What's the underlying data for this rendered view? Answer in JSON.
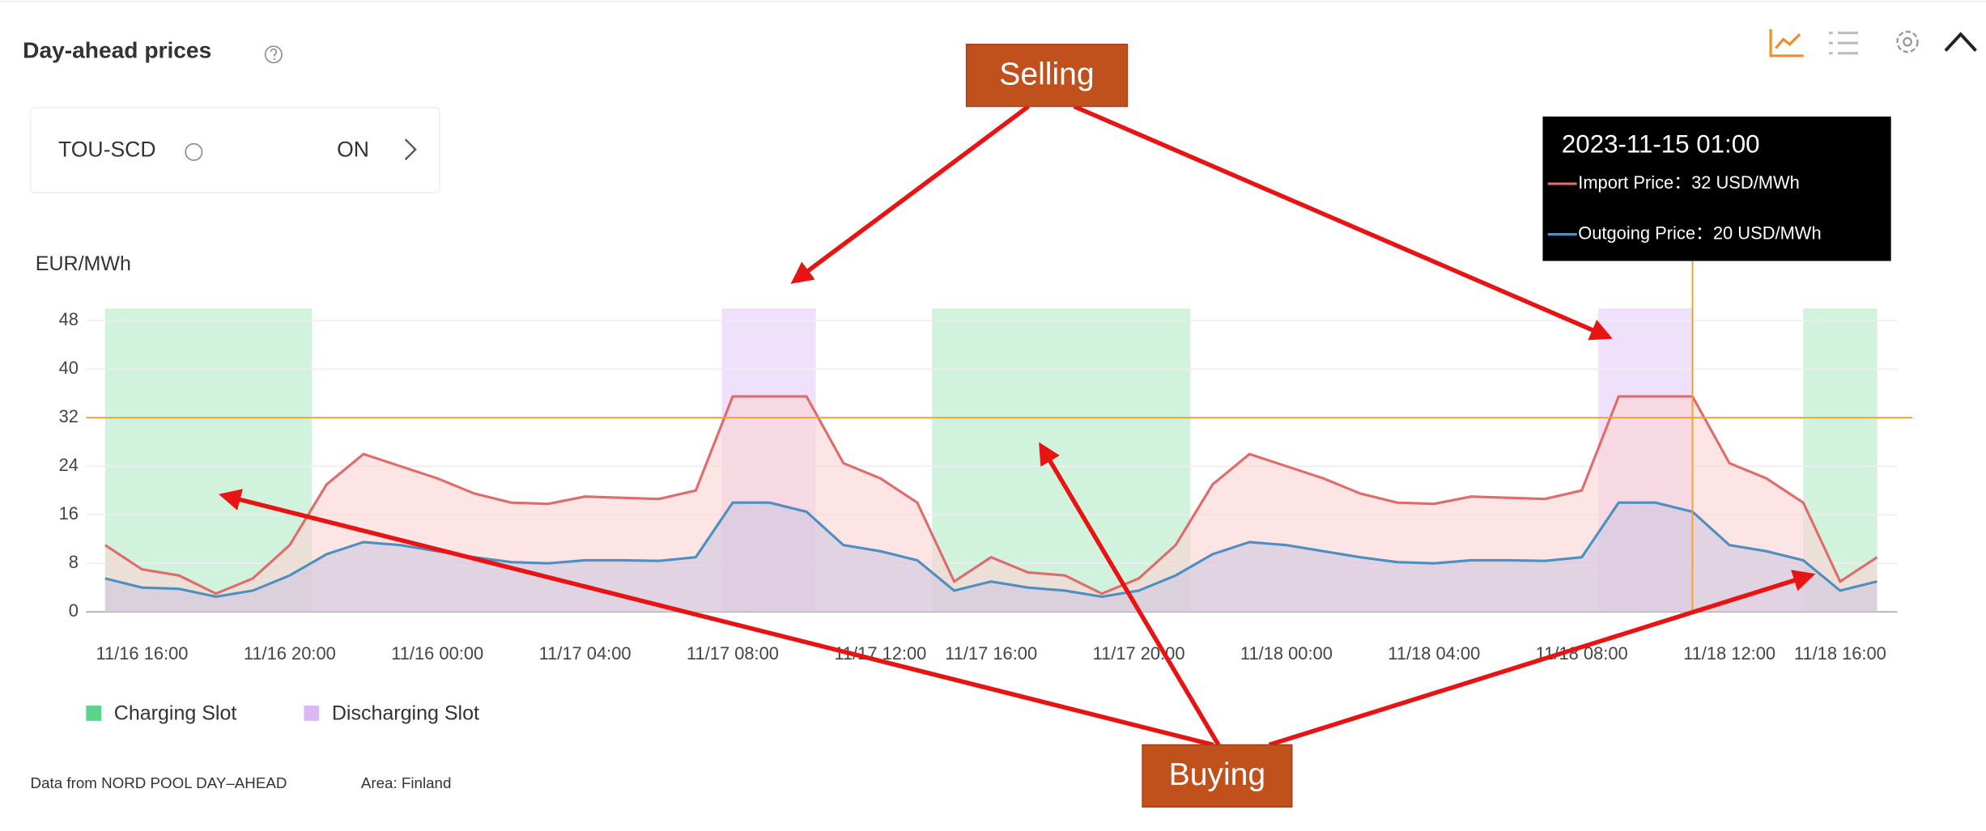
{
  "header": {
    "title": "Day-ahead prices"
  },
  "tou": {
    "label": "TOU-SCD",
    "status": "ON"
  },
  "footer": {
    "source": "Data from NORD POOL DAY–AHEAD",
    "area": "Area: Finland"
  },
  "annotations": {
    "selling": "Selling",
    "buying": "Buying"
  },
  "chart_data": {
    "type": "line",
    "y_label": "EUR/MWh",
    "categories": [
      null,
      "11/16 16:00",
      null,
      null,
      null,
      "11/16 20:00",
      null,
      null,
      null,
      "11/16 00:00",
      null,
      null,
      null,
      "11/17 04:00",
      null,
      null,
      null,
      "11/17 08:00",
      null,
      null,
      null,
      "11/17 12:00",
      null,
      null,
      "11/17 16:00",
      null,
      null,
      null,
      "11/17 20:00",
      null,
      null,
      null,
      "11/18 00:00",
      null,
      null,
      null,
      "11/18 04:00",
      null,
      null,
      null,
      "11/18 08:00",
      null,
      null,
      null,
      "11/18 12:00",
      null,
      null,
      "11/18 16:00",
      null
    ],
    "series": [
      {
        "color": "#e06b6b",
        "fill": "#fbd3d3",
        "values": [
          11,
          7,
          6,
          3,
          5.5,
          11,
          21,
          26,
          24,
          22,
          19.5,
          18,
          17.8,
          19,
          18.8,
          18.6,
          20,
          35.5,
          35.5,
          35.5,
          24.5,
          22,
          18,
          5,
          9,
          6.5,
          6,
          3,
          5.5,
          11,
          21,
          26,
          24,
          22,
          19.5,
          18,
          17.8,
          19,
          18.8,
          18.6,
          20,
          35.5,
          35.5,
          35.5,
          24.5,
          22,
          18,
          5,
          9
        ]
      },
      {
        "color": "#4d8fc0",
        "fill": "#cfc7df",
        "values": [
          5.5,
          4,
          3.8,
          2.5,
          3.5,
          6,
          9.5,
          11.5,
          11,
          10,
          9,
          8.2,
          8,
          8.5,
          8.5,
          8.4,
          9,
          18,
          18,
          16.5,
          11,
          10,
          8.5,
          3.5,
          5,
          4,
          3.5,
          2.5,
          3.5,
          6,
          9.5,
          11.5,
          11,
          10,
          9,
          8.2,
          8,
          8.5,
          8.5,
          8.4,
          9,
          18,
          18,
          16.5,
          11,
          10,
          8.5,
          3.5,
          5
        ]
      }
    ],
    "ylim": [
      0,
      50
    ],
    "yticks": [
      0,
      8,
      16,
      24,
      32,
      40,
      48
    ],
    "grid": true,
    "slots": [
      {
        "name": "Charging Slot",
        "color": "#5ad48c",
        "fill": "#c9f1d8",
        "ranges": [
          [
            0,
            5.6
          ],
          [
            22.4,
            29.4
          ],
          [
            46,
            48
          ]
        ]
      },
      {
        "name": "Discharging Slot",
        "color": "#d9b8f5",
        "fill": "#ecdcfb",
        "ranges": [
          [
            16.7,
            19.25
          ],
          [
            40.45,
            43
          ]
        ]
      }
    ],
    "reference_line": {
      "y": 32,
      "color": "#f0a030"
    },
    "crosshair_x": 43,
    "tooltip": {
      "title": "2023-11-15 01:00",
      "rows": [
        {
          "text": "Import Price：32 USD/MWh",
          "color": "#e06b6b"
        },
        {
          "text": "Outgoing Price：20 USD/MWh",
          "color": "#4d8fc0"
        }
      ]
    }
  }
}
